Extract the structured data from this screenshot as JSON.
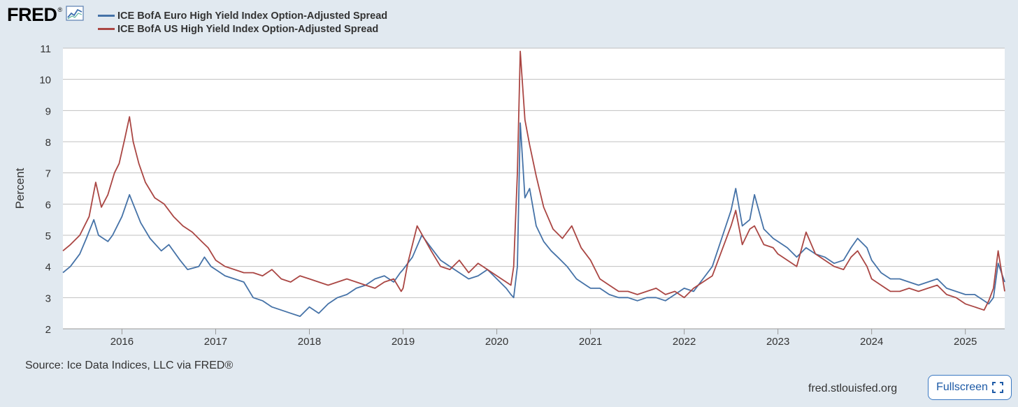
{
  "header": {
    "logo_text": "FRED",
    "logo_mark": "®",
    "logo_icon": "line-chart-icon"
  },
  "footer": {
    "source": "Source: Ice Data Indices, LLC via FRED®",
    "site": "fred.stlouisfed.org",
    "fullscreen_label": "Fullscreen",
    "fullscreen_icon": "expand-icon"
  },
  "colors": {
    "background": "#e1e9f0",
    "plot_background": "#ffffff",
    "euro_series": "#4572a7",
    "us_series": "#aa4643",
    "grid": "#c0c0c0"
  },
  "chart_data": {
    "type": "line",
    "title": "",
    "xlabel": "",
    "ylabel": "Percent",
    "ylim": [
      2,
      11
    ],
    "yticks": [
      2,
      3,
      4,
      5,
      6,
      7,
      8,
      9,
      10,
      11
    ],
    "xlim": [
      2015.37,
      2025.42
    ],
    "xticks": [
      "2016",
      "2017",
      "2018",
      "2019",
      "2020",
      "2021",
      "2022",
      "2023",
      "2024",
      "2025"
    ],
    "grid": "horizontal",
    "legend_position": "top-left",
    "series": [
      {
        "name": "ICE BofA Euro High Yield Index Option-Adjusted Spread",
        "color": "#4572a7",
        "x": [
          2015.37,
          2015.45,
          2015.55,
          2015.62,
          2015.7,
          2015.75,
          2015.85,
          2015.9,
          2016.0,
          2016.08,
          2016.12,
          2016.2,
          2016.3,
          2016.42,
          2016.5,
          2016.62,
          2016.7,
          2016.82,
          2016.88,
          2016.95,
          2017.0,
          2017.1,
          2017.2,
          2017.3,
          2017.4,
          2017.5,
          2017.6,
          2017.7,
          2017.8,
          2017.9,
          2018.0,
          2018.1,
          2018.2,
          2018.3,
          2018.4,
          2018.5,
          2018.6,
          2018.7,
          2018.8,
          2018.9,
          2018.97,
          2019.0,
          2019.1,
          2019.2,
          2019.3,
          2019.4,
          2019.5,
          2019.6,
          2019.7,
          2019.8,
          2019.9,
          2020.0,
          2020.1,
          2020.15,
          2020.18,
          2020.22,
          2020.25,
          2020.3,
          2020.35,
          2020.42,
          2020.5,
          2020.58,
          2020.65,
          2020.75,
          2020.85,
          2020.95,
          2021.0,
          2021.1,
          2021.2,
          2021.3,
          2021.4,
          2021.5,
          2021.6,
          2021.7,
          2021.8,
          2021.9,
          2022.0,
          2022.1,
          2022.2,
          2022.3,
          2022.4,
          2022.5,
          2022.55,
          2022.62,
          2022.7,
          2022.75,
          2022.85,
          2022.95,
          2023.0,
          2023.1,
          2023.2,
          2023.3,
          2023.4,
          2023.5,
          2023.6,
          2023.7,
          2023.78,
          2023.85,
          2023.95,
          2024.0,
          2024.1,
          2024.2,
          2024.3,
          2024.4,
          2024.5,
          2024.6,
          2024.7,
          2024.8,
          2024.9,
          2025.0,
          2025.1,
          2025.2,
          2025.25,
          2025.3,
          2025.35,
          2025.42
        ],
        "y": [
          3.8,
          4.0,
          4.4,
          4.9,
          5.5,
          5.0,
          4.8,
          5.0,
          5.6,
          6.3,
          6.0,
          5.4,
          4.9,
          4.5,
          4.7,
          4.2,
          3.9,
          4.0,
          4.3,
          4.0,
          3.9,
          3.7,
          3.6,
          3.5,
          3.0,
          2.9,
          2.7,
          2.6,
          2.5,
          2.4,
          2.7,
          2.5,
          2.8,
          3.0,
          3.1,
          3.3,
          3.4,
          3.6,
          3.7,
          3.5,
          3.8,
          3.9,
          4.3,
          5.0,
          4.6,
          4.2,
          4.0,
          3.8,
          3.6,
          3.7,
          3.9,
          3.6,
          3.3,
          3.1,
          3.0,
          4.0,
          8.6,
          6.2,
          6.5,
          5.3,
          4.8,
          4.5,
          4.3,
          4.0,
          3.6,
          3.4,
          3.3,
          3.3,
          3.1,
          3.0,
          3.0,
          2.9,
          3.0,
          3.0,
          2.9,
          3.1,
          3.3,
          3.2,
          3.6,
          4.0,
          4.9,
          5.8,
          6.5,
          5.3,
          5.5,
          6.3,
          5.2,
          4.9,
          4.8,
          4.6,
          4.3,
          4.6,
          4.4,
          4.3,
          4.1,
          4.2,
          4.6,
          4.9,
          4.6,
          4.2,
          3.8,
          3.6,
          3.6,
          3.5,
          3.4,
          3.5,
          3.6,
          3.3,
          3.2,
          3.1,
          3.1,
          2.9,
          2.8,
          3.0,
          4.1,
          3.5
        ]
      },
      {
        "name": "ICE BofA US High Yield Index Option-Adjusted Spread",
        "color": "#aa4643",
        "x": [
          2015.37,
          2015.45,
          2015.55,
          2015.65,
          2015.72,
          2015.78,
          2015.85,
          2015.92,
          2015.97,
          2016.03,
          2016.08,
          2016.12,
          2016.18,
          2016.25,
          2016.35,
          2016.45,
          2016.55,
          2016.65,
          2016.75,
          2016.85,
          2016.92,
          2017.0,
          2017.1,
          2017.2,
          2017.3,
          2017.4,
          2017.5,
          2017.6,
          2017.7,
          2017.8,
          2017.9,
          2018.0,
          2018.1,
          2018.2,
          2018.3,
          2018.4,
          2018.5,
          2018.6,
          2018.7,
          2018.8,
          2018.9,
          2018.98,
          2019.0,
          2019.05,
          2019.15,
          2019.3,
          2019.4,
          2019.5,
          2019.6,
          2019.7,
          2019.8,
          2019.9,
          2020.0,
          2020.1,
          2020.15,
          2020.18,
          2020.22,
          2020.25,
          2020.3,
          2020.35,
          2020.42,
          2020.5,
          2020.6,
          2020.7,
          2020.8,
          2020.9,
          2021.0,
          2021.1,
          2021.2,
          2021.3,
          2021.4,
          2021.5,
          2021.6,
          2021.7,
          2021.8,
          2021.9,
          2022.0,
          2022.1,
          2022.2,
          2022.3,
          2022.4,
          2022.5,
          2022.55,
          2022.62,
          2022.7,
          2022.75,
          2022.85,
          2022.95,
          2023.0,
          2023.1,
          2023.2,
          2023.3,
          2023.4,
          2023.5,
          2023.6,
          2023.7,
          2023.78,
          2023.85,
          2023.95,
          2024.0,
          2024.1,
          2024.2,
          2024.3,
          2024.4,
          2024.5,
          2024.6,
          2024.7,
          2024.8,
          2024.9,
          2025.0,
          2025.1,
          2025.2,
          2025.25,
          2025.3,
          2025.35,
          2025.42
        ],
        "y": [
          4.5,
          4.7,
          5.0,
          5.6,
          6.7,
          5.9,
          6.3,
          7.0,
          7.3,
          8.1,
          8.8,
          8.0,
          7.3,
          6.7,
          6.2,
          6.0,
          5.6,
          5.3,
          5.1,
          4.8,
          4.6,
          4.2,
          4.0,
          3.9,
          3.8,
          3.8,
          3.7,
          3.9,
          3.6,
          3.5,
          3.7,
          3.6,
          3.5,
          3.4,
          3.5,
          3.6,
          3.5,
          3.4,
          3.3,
          3.5,
          3.6,
          3.2,
          3.3,
          4.1,
          5.3,
          4.5,
          4.0,
          3.9,
          4.2,
          3.8,
          4.1,
          3.9,
          3.7,
          3.5,
          3.4,
          4.0,
          7.0,
          10.9,
          8.7,
          7.9,
          6.9,
          5.9,
          5.2,
          4.9,
          5.3,
          4.6,
          4.2,
          3.6,
          3.4,
          3.2,
          3.2,
          3.1,
          3.2,
          3.3,
          3.1,
          3.2,
          3.0,
          3.3,
          3.5,
          3.7,
          4.5,
          5.3,
          5.8,
          4.7,
          5.2,
          5.3,
          4.7,
          4.6,
          4.4,
          4.2,
          4.0,
          5.1,
          4.4,
          4.2,
          4.0,
          3.9,
          4.3,
          4.5,
          4.0,
          3.6,
          3.4,
          3.2,
          3.2,
          3.3,
          3.2,
          3.3,
          3.4,
          3.1,
          3.0,
          2.8,
          2.7,
          2.6,
          2.9,
          3.3,
          4.5,
          3.2
        ]
      }
    ]
  }
}
